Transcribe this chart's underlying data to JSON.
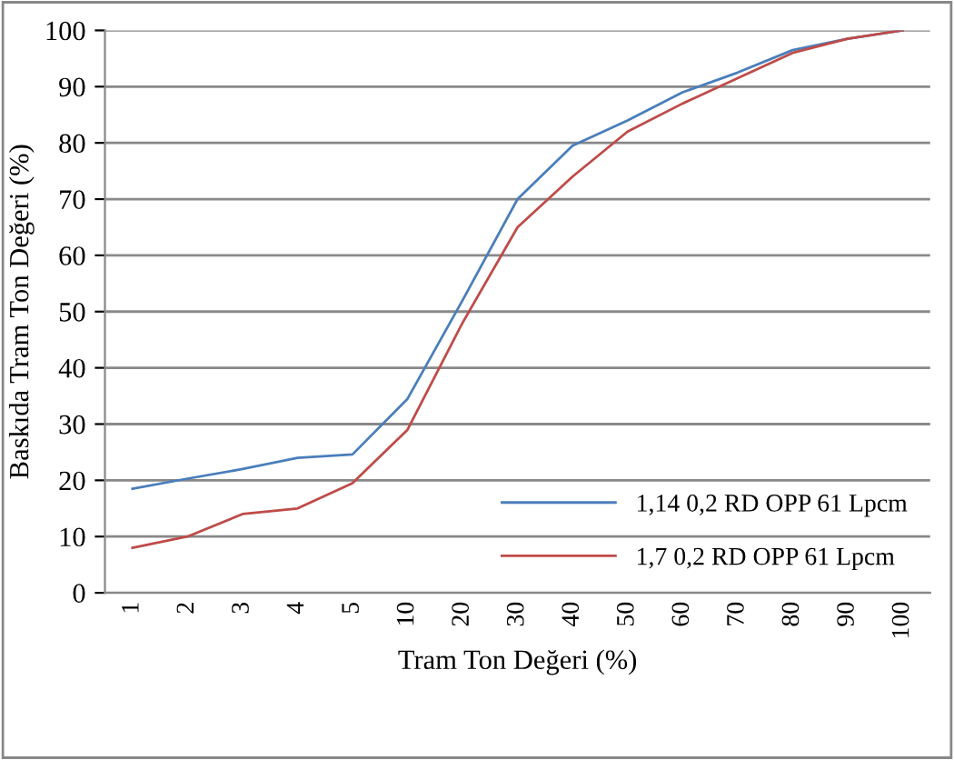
{
  "chart_data": {
    "type": "line",
    "xlabel": "Tram Ton Değeri (%)",
    "ylabel": "Baskıda Tram Ton Değeri (%)",
    "categories": [
      "1",
      "2",
      "3",
      "4",
      "5",
      "10",
      "20",
      "30",
      "40",
      "50",
      "60",
      "70",
      "80",
      "90",
      "100"
    ],
    "series": [
      {
        "name": "1,14 0,2 RD OPP 61 Lpcm",
        "color": "#4a7ebb",
        "values": [
          18.5,
          20.3,
          22,
          24,
          24.6,
          34.5,
          52,
          70,
          79.5,
          84,
          89,
          92.5,
          96.5,
          98.5,
          100
        ]
      },
      {
        "name": "1,7 0,2 RD OPP 61 Lpcm",
        "color": "#be4b48",
        "values": [
          8,
          10,
          14,
          15,
          19.5,
          29,
          48,
          65,
          74,
          82,
          87,
          91.5,
          96,
          98.5,
          100
        ]
      }
    ],
    "ylim": [
      0,
      100
    ],
    "yticks": [
      0,
      10,
      20,
      30,
      40,
      50,
      60,
      70,
      80,
      90,
      100
    ],
    "grid": "y",
    "legend": "bottom right",
    "marker": "none",
    "line_style": "solid"
  }
}
